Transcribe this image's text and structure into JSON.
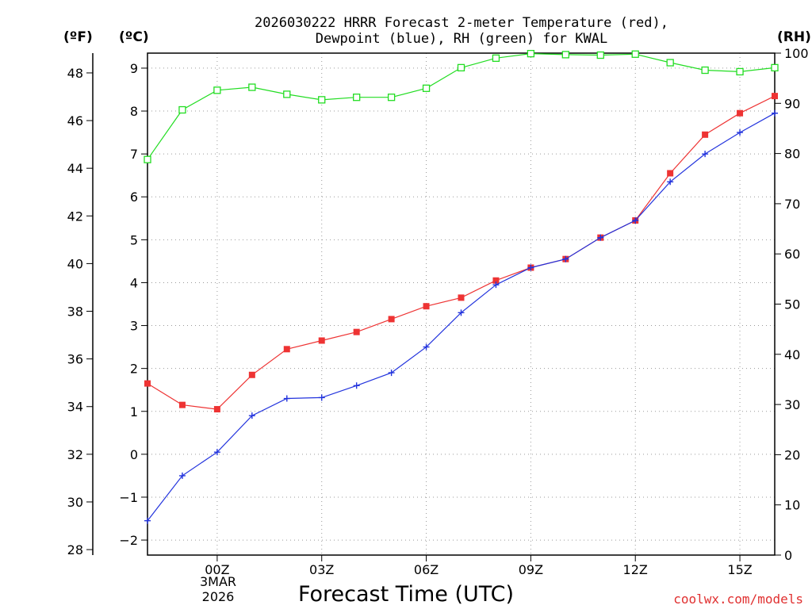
{
  "title_line1": "2026030222 HRRR Forecast 2-meter Temperature (red),",
  "title_line2": "Dewpoint (blue), RH (green) for KWAL",
  "units": {
    "fahrenheit": "(ºF)",
    "celsius": "(ºC)",
    "rh": "(RH)"
  },
  "xlabel": "Forecast Time (UTC)",
  "date_label": {
    "month_day": "3MAR",
    "year": "2026"
  },
  "credit": "coolwx.com/models",
  "colors": {
    "temperature": "#ee3333",
    "dewpoint": "#2233dd",
    "rh": "#22dd22"
  },
  "chart_data": {
    "type": "line",
    "title": "2026030222 HRRR Forecast 2-meter Temperature (red), Dewpoint (blue), RH (green) for KWAL",
    "xlabel": "Forecast Time (UTC)",
    "x_hours": [
      -2,
      -1,
      0,
      1,
      2,
      3,
      4,
      5,
      6,
      7,
      8,
      9,
      10,
      11,
      12,
      13,
      14,
      15,
      16
    ],
    "x_ticks": [
      {
        "hour": 0,
        "label": "00Z"
      },
      {
        "hour": 3,
        "label": "03Z"
      },
      {
        "hour": 6,
        "label": "06Z"
      },
      {
        "hour": 9,
        "label": "09Z"
      },
      {
        "hour": 12,
        "label": "12Z"
      },
      {
        "hour": 15,
        "label": "15Z"
      }
    ],
    "x_range": [
      -2,
      16
    ],
    "celsius_range": [
      -2.35,
      9.35
    ],
    "celsius_ticks": [
      "-2",
      "-1",
      "0",
      "1",
      "2",
      "3",
      "4",
      "5",
      "6",
      "7",
      "8",
      "9"
    ],
    "fahrenheit_ticks": [
      "28",
      "30",
      "32",
      "34",
      "36",
      "38",
      "40",
      "42",
      "44",
      "46",
      "48"
    ],
    "rh_range": [
      0,
      100
    ],
    "rh_ticks": [
      "0",
      "10",
      "20",
      "30",
      "40",
      "50",
      "60",
      "70",
      "80",
      "90",
      "100"
    ],
    "series": [
      {
        "name": "Temperature",
        "units": "C",
        "values": [
          1.65,
          1.15,
          1.05,
          1.85,
          2.45,
          2.65,
          2.85,
          3.15,
          3.45,
          3.65,
          4.05,
          4.35,
          4.55,
          5.05,
          5.45,
          6.55,
          7.45,
          7.95,
          8.35
        ]
      },
      {
        "name": "Dewpoint",
        "units": "C",
        "values": [
          -1.55,
          -0.5,
          0.05,
          0.9,
          1.3,
          1.32,
          1.6,
          1.9,
          2.5,
          3.3,
          3.95,
          4.35,
          4.55,
          5.05,
          5.45,
          6.35,
          7.0,
          7.5,
          7.95
        ]
      },
      {
        "name": "Relative Humidity",
        "units": "%",
        "values": [
          78.8,
          88.7,
          92.6,
          93.2,
          91.8,
          90.7,
          91.2,
          91.2,
          93.0,
          97.1,
          99.0,
          99.9,
          99.7,
          99.6,
          99.8,
          98.1,
          96.6,
          96.3,
          97.1
        ]
      }
    ],
    "grid": true
  }
}
